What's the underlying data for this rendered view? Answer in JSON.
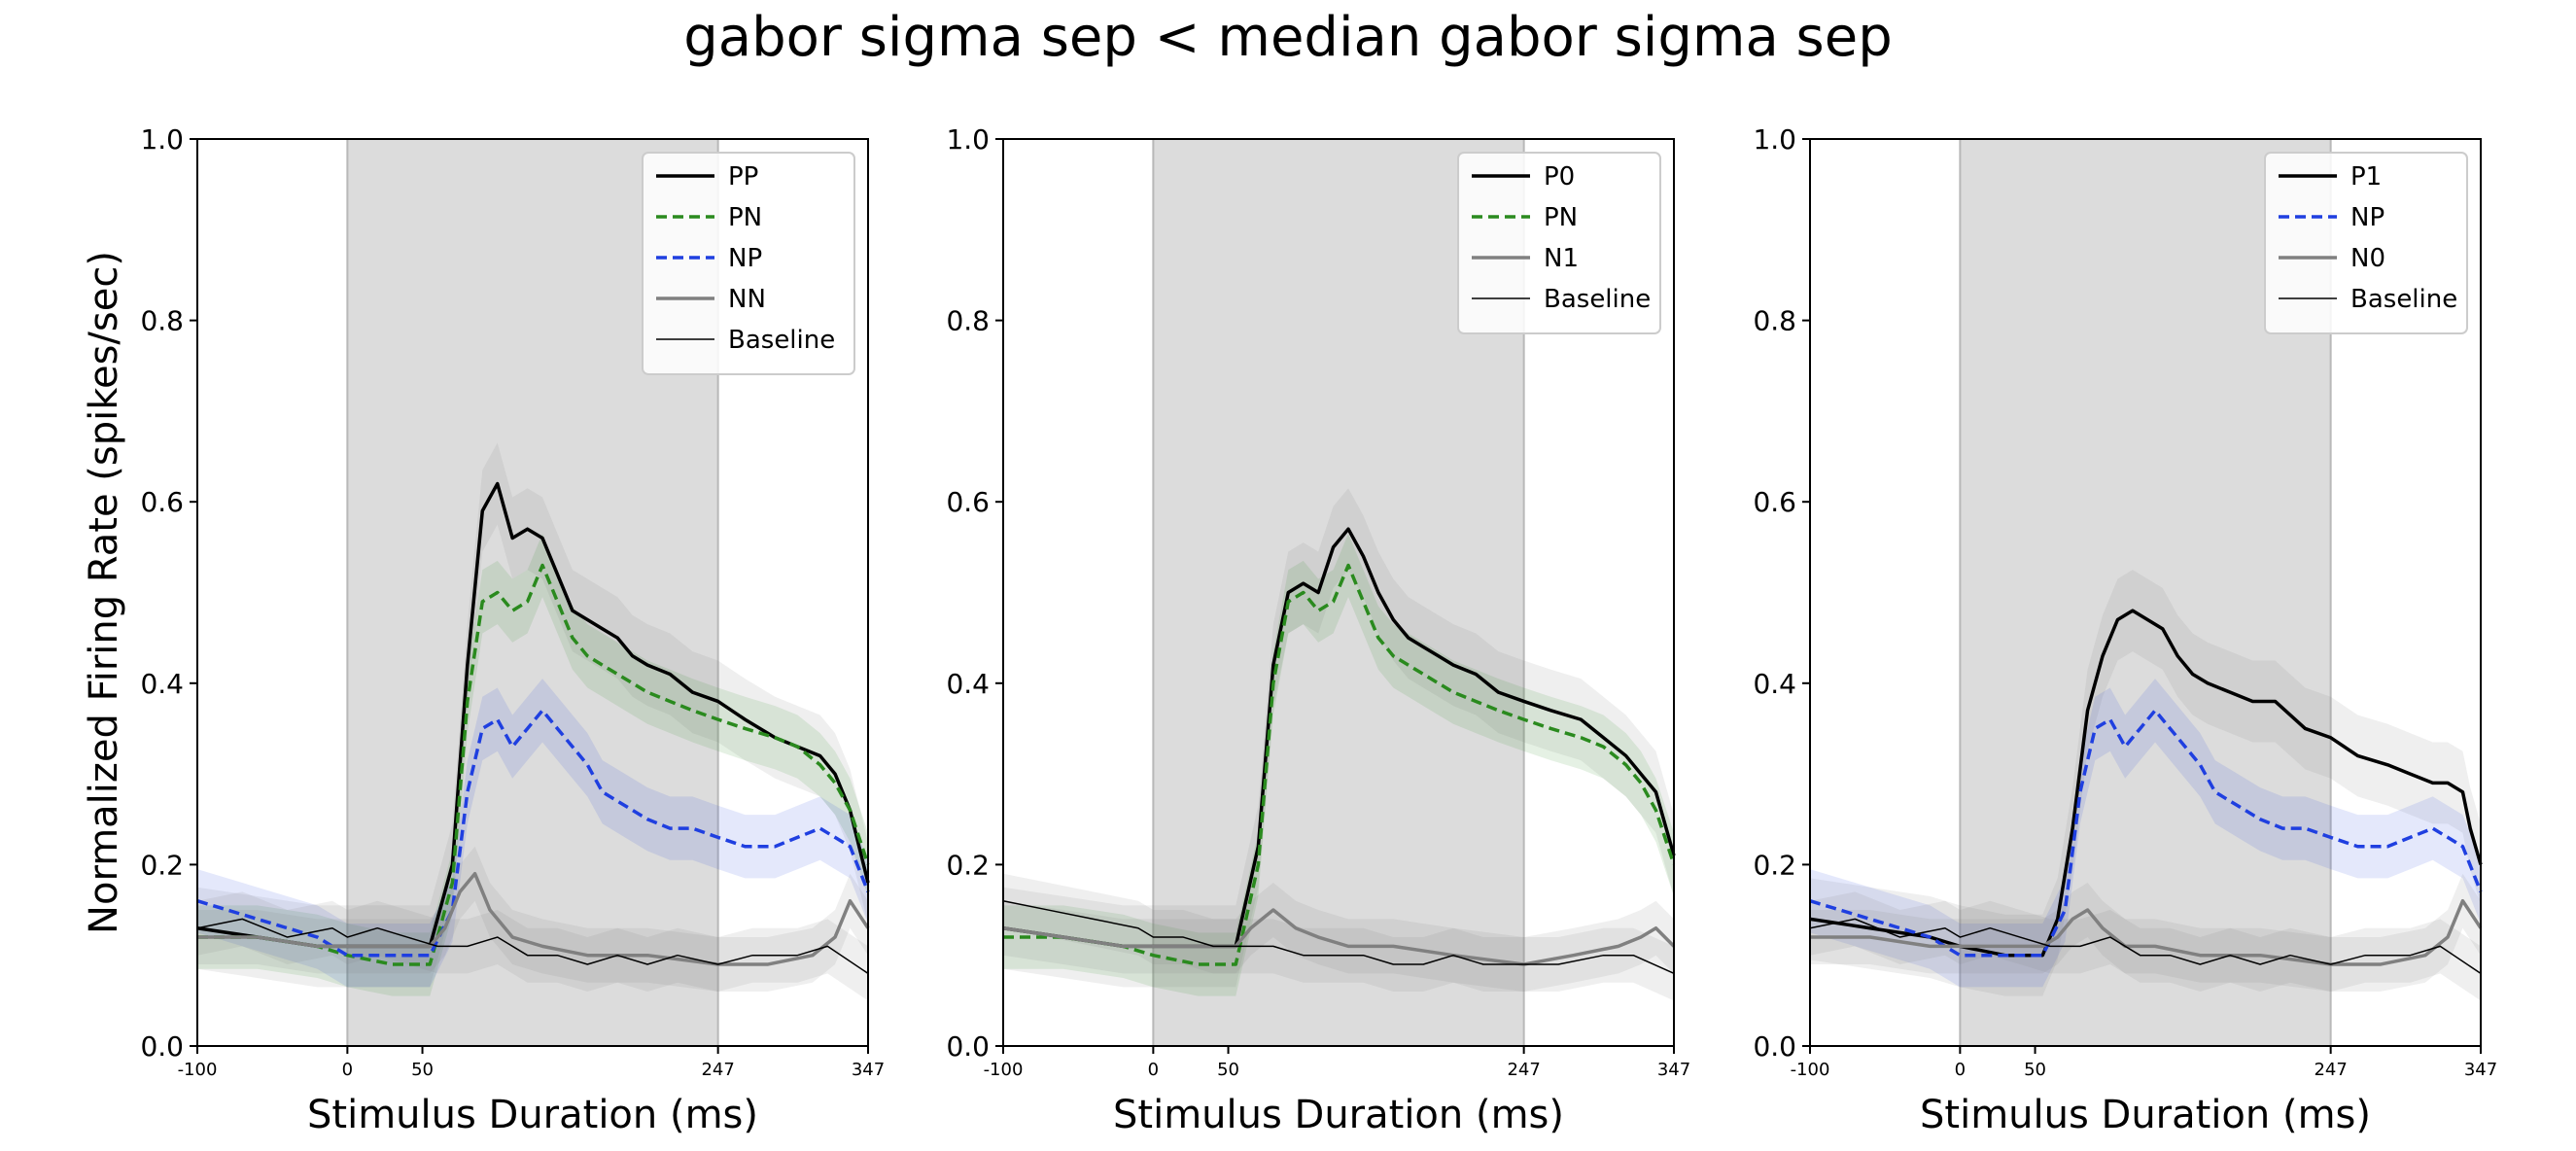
{
  "figure": {
    "title": "gabor sigma sep < median gabor sigma sep"
  },
  "colors": {
    "black": "#000000",
    "green": "#2a8a1e",
    "blue": "#1f3fe0",
    "gray": "#808080",
    "shade": "#dcdcdc"
  },
  "chart_data": [
    {
      "type": "line",
      "xlabel": "Stimulus Duration (ms)",
      "ylabel": "Normalized Firing Rate (spikes/sec)",
      "xlim": [
        -100,
        347
      ],
      "ylim": [
        0.0,
        1.0
      ],
      "xticks": [
        -100,
        0,
        50,
        247,
        347
      ],
      "yticks": [
        0.0,
        0.2,
        0.4,
        0.6,
        0.8,
        1.0
      ],
      "stimulus_window": [
        0,
        247
      ],
      "legend_position": "top-right",
      "series": [
        {
          "name": "PP",
          "color": "black",
          "style": "solid",
          "width": "thick",
          "band": 0.045,
          "x": [
            -100,
            -60,
            -20,
            0,
            30,
            55,
            70,
            80,
            90,
            100,
            110,
            120,
            130,
            140,
            150,
            160,
            170,
            180,
            190,
            200,
            215,
            230,
            247,
            265,
            285,
            300,
            315,
            325,
            335,
            347
          ],
          "y": [
            0.13,
            0.12,
            0.11,
            0.11,
            0.11,
            0.11,
            0.2,
            0.42,
            0.59,
            0.62,
            0.56,
            0.57,
            0.56,
            0.52,
            0.48,
            0.47,
            0.46,
            0.45,
            0.43,
            0.42,
            0.41,
            0.39,
            0.38,
            0.36,
            0.34,
            0.33,
            0.32,
            0.3,
            0.26,
            0.18
          ]
        },
        {
          "name": "PN",
          "color": "green",
          "style": "dashed",
          "width": "thick",
          "band": 0.035,
          "x": [
            -100,
            -60,
            -20,
            0,
            30,
            55,
            70,
            80,
            90,
            100,
            110,
            120,
            130,
            140,
            150,
            160,
            170,
            180,
            190,
            200,
            215,
            230,
            247,
            265,
            285,
            300,
            315,
            325,
            335,
            347
          ],
          "y": [
            0.12,
            0.12,
            0.11,
            0.1,
            0.09,
            0.09,
            0.18,
            0.38,
            0.49,
            0.5,
            0.48,
            0.49,
            0.53,
            0.49,
            0.45,
            0.43,
            0.42,
            0.41,
            0.4,
            0.39,
            0.38,
            0.37,
            0.36,
            0.35,
            0.34,
            0.33,
            0.31,
            0.29,
            0.26,
            0.2
          ]
        },
        {
          "name": "NP",
          "color": "blue",
          "style": "dashed",
          "width": "thick",
          "band": 0.035,
          "x": [
            -100,
            -60,
            -20,
            0,
            30,
            55,
            70,
            80,
            90,
            100,
            110,
            120,
            130,
            140,
            150,
            160,
            170,
            180,
            190,
            200,
            215,
            230,
            247,
            265,
            285,
            300,
            315,
            325,
            335,
            347
          ],
          "y": [
            0.16,
            0.14,
            0.12,
            0.1,
            0.1,
            0.1,
            0.15,
            0.28,
            0.35,
            0.36,
            0.33,
            0.35,
            0.37,
            0.35,
            0.33,
            0.31,
            0.28,
            0.27,
            0.26,
            0.25,
            0.24,
            0.24,
            0.23,
            0.22,
            0.22,
            0.23,
            0.24,
            0.23,
            0.22,
            0.17
          ]
        },
        {
          "name": "NN",
          "color": "gray",
          "style": "solid",
          "width": "thick",
          "band": 0.03,
          "x": [
            -100,
            -60,
            -20,
            0,
            30,
            55,
            65,
            75,
            85,
            95,
            110,
            130,
            160,
            200,
            247,
            280,
            310,
            325,
            335,
            347
          ],
          "y": [
            0.12,
            0.12,
            0.11,
            0.11,
            0.11,
            0.11,
            0.13,
            0.17,
            0.19,
            0.15,
            0.12,
            0.11,
            0.1,
            0.1,
            0.09,
            0.09,
            0.1,
            0.12,
            0.16,
            0.13
          ]
        },
        {
          "name": "Baseline",
          "color": "black",
          "style": "solid",
          "width": "thin",
          "band": 0.03,
          "x": [
            -100,
            -70,
            -40,
            -10,
            0,
            20,
            40,
            60,
            80,
            100,
            120,
            140,
            160,
            180,
            200,
            220,
            247,
            270,
            300,
            320,
            347
          ],
          "y": [
            0.13,
            0.14,
            0.12,
            0.13,
            0.12,
            0.13,
            0.12,
            0.11,
            0.11,
            0.12,
            0.1,
            0.1,
            0.09,
            0.1,
            0.09,
            0.1,
            0.09,
            0.1,
            0.1,
            0.11,
            0.08
          ]
        }
      ]
    },
    {
      "type": "line",
      "xlabel": "Stimulus Duration (ms)",
      "ylabel": "",
      "xlim": [
        -100,
        347
      ],
      "ylim": [
        0.0,
        1.0
      ],
      "xticks": [
        -100,
        0,
        50,
        247,
        347
      ],
      "yticks": [
        0.0,
        0.2,
        0.4,
        0.6,
        0.8,
        1.0
      ],
      "stimulus_window": [
        0,
        247
      ],
      "legend_position": "top-right",
      "series": [
        {
          "name": "P0",
          "color": "black",
          "style": "solid",
          "width": "thick",
          "band": 0.045,
          "x": [
            -100,
            -60,
            -20,
            0,
            30,
            55,
            70,
            80,
            90,
            100,
            110,
            120,
            130,
            140,
            150,
            160,
            170,
            180,
            190,
            200,
            215,
            230,
            247,
            265,
            285,
            300,
            315,
            325,
            335,
            347
          ],
          "y": [
            0.13,
            0.12,
            0.11,
            0.11,
            0.11,
            0.11,
            0.22,
            0.42,
            0.5,
            0.51,
            0.5,
            0.55,
            0.57,
            0.54,
            0.5,
            0.47,
            0.45,
            0.44,
            0.43,
            0.42,
            0.41,
            0.39,
            0.38,
            0.37,
            0.36,
            0.34,
            0.32,
            0.3,
            0.28,
            0.21
          ]
        },
        {
          "name": "PN",
          "color": "green",
          "style": "dashed",
          "width": "thick",
          "band": 0.035,
          "x": [
            -100,
            -60,
            -20,
            0,
            30,
            55,
            70,
            80,
            90,
            100,
            110,
            120,
            130,
            140,
            150,
            160,
            170,
            180,
            190,
            200,
            215,
            230,
            247,
            265,
            285,
            300,
            315,
            325,
            335,
            347
          ],
          "y": [
            0.12,
            0.12,
            0.11,
            0.1,
            0.09,
            0.09,
            0.2,
            0.4,
            0.49,
            0.5,
            0.48,
            0.49,
            0.53,
            0.49,
            0.45,
            0.43,
            0.42,
            0.41,
            0.4,
            0.39,
            0.38,
            0.37,
            0.36,
            0.35,
            0.34,
            0.33,
            0.31,
            0.29,
            0.26,
            0.2
          ]
        },
        {
          "name": "N1",
          "color": "gray",
          "style": "solid",
          "width": "thick",
          "band": 0.03,
          "x": [
            -100,
            -60,
            -20,
            0,
            30,
            55,
            65,
            80,
            95,
            110,
            130,
            160,
            200,
            247,
            280,
            310,
            325,
            335,
            347
          ],
          "y": [
            0.13,
            0.12,
            0.11,
            0.11,
            0.11,
            0.11,
            0.13,
            0.15,
            0.13,
            0.12,
            0.11,
            0.11,
            0.1,
            0.09,
            0.1,
            0.11,
            0.12,
            0.13,
            0.11
          ]
        },
        {
          "name": "Baseline",
          "color": "black",
          "style": "solid",
          "width": "thin",
          "band": 0.03,
          "x": [
            -100,
            -70,
            -40,
            -10,
            0,
            20,
            40,
            60,
            80,
            100,
            120,
            140,
            160,
            180,
            200,
            220,
            247,
            270,
            300,
            320,
            347
          ],
          "y": [
            0.16,
            0.15,
            0.14,
            0.13,
            0.12,
            0.12,
            0.11,
            0.11,
            0.11,
            0.1,
            0.1,
            0.1,
            0.09,
            0.09,
            0.1,
            0.09,
            0.09,
            0.09,
            0.1,
            0.1,
            0.08
          ]
        }
      ]
    },
    {
      "type": "line",
      "xlabel": "Stimulus Duration (ms)",
      "ylabel": "",
      "xlim": [
        -100,
        347
      ],
      "ylim": [
        0.0,
        1.0
      ],
      "xticks": [
        -100,
        0,
        50,
        247,
        347
      ],
      "yticks": [
        0.0,
        0.2,
        0.4,
        0.6,
        0.8,
        1.0
      ],
      "stimulus_window": [
        0,
        247
      ],
      "legend_position": "top-right",
      "series": [
        {
          "name": "P1",
          "color": "black",
          "style": "solid",
          "width": "thick",
          "band": 0.045,
          "x": [
            -100,
            -60,
            -20,
            0,
            30,
            55,
            65,
            75,
            85,
            95,
            105,
            115,
            125,
            135,
            145,
            155,
            165,
            180,
            195,
            210,
            230,
            247,
            265,
            285,
            300,
            315,
            325,
            335,
            340,
            347
          ],
          "y": [
            0.14,
            0.13,
            0.12,
            0.11,
            0.1,
            0.1,
            0.14,
            0.24,
            0.37,
            0.43,
            0.47,
            0.48,
            0.47,
            0.46,
            0.43,
            0.41,
            0.4,
            0.39,
            0.38,
            0.38,
            0.35,
            0.34,
            0.32,
            0.31,
            0.3,
            0.29,
            0.29,
            0.28,
            0.24,
            0.2
          ]
        },
        {
          "name": "NP",
          "color": "blue",
          "style": "dashed",
          "width": "thick",
          "band": 0.035,
          "x": [
            -100,
            -60,
            -20,
            0,
            30,
            55,
            70,
            80,
            90,
            100,
            110,
            120,
            130,
            140,
            150,
            160,
            170,
            180,
            190,
            200,
            215,
            230,
            247,
            265,
            285,
            300,
            315,
            325,
            335,
            347
          ],
          "y": [
            0.16,
            0.14,
            0.12,
            0.1,
            0.1,
            0.1,
            0.15,
            0.28,
            0.35,
            0.36,
            0.33,
            0.35,
            0.37,
            0.35,
            0.33,
            0.31,
            0.28,
            0.27,
            0.26,
            0.25,
            0.24,
            0.24,
            0.23,
            0.22,
            0.22,
            0.23,
            0.24,
            0.23,
            0.22,
            0.17
          ]
        },
        {
          "name": "N0",
          "color": "gray",
          "style": "solid",
          "width": "thick",
          "band": 0.03,
          "x": [
            -100,
            -60,
            -20,
            0,
            30,
            55,
            65,
            75,
            85,
            95,
            110,
            130,
            160,
            200,
            247,
            280,
            310,
            325,
            335,
            347
          ],
          "y": [
            0.12,
            0.12,
            0.11,
            0.11,
            0.11,
            0.11,
            0.12,
            0.14,
            0.15,
            0.13,
            0.11,
            0.11,
            0.1,
            0.1,
            0.09,
            0.09,
            0.1,
            0.12,
            0.16,
            0.13
          ]
        },
        {
          "name": "Baseline",
          "color": "black",
          "style": "solid",
          "width": "thin",
          "band": 0.03,
          "x": [
            -100,
            -70,
            -40,
            -10,
            0,
            20,
            40,
            60,
            80,
            100,
            120,
            140,
            160,
            180,
            200,
            220,
            247,
            270,
            300,
            320,
            347
          ],
          "y": [
            0.13,
            0.14,
            0.12,
            0.13,
            0.12,
            0.13,
            0.12,
            0.11,
            0.11,
            0.12,
            0.1,
            0.1,
            0.09,
            0.1,
            0.09,
            0.1,
            0.09,
            0.1,
            0.1,
            0.11,
            0.08
          ]
        }
      ]
    }
  ]
}
